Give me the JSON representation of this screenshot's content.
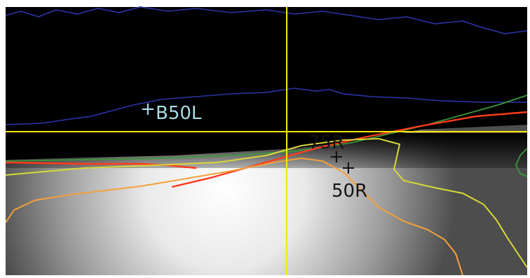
{
  "points": [
    {
      "id": "B50L",
      "label": "B50L",
      "label_color": "#a9dbe6",
      "marker_color": "#a9dbe6"
    },
    {
      "id": "75R",
      "label": "75R",
      "label_color": "#141414",
      "marker_color": "#141414"
    },
    {
      "id": "50R",
      "label": "50R",
      "label_color": "#141414",
      "marker_color": "#141414"
    }
  ],
  "colors": {
    "background_dark": "#000000",
    "crosshair": "#ffe600",
    "contour_blue": "#2a35a8",
    "contour_green": "#3a9a3a",
    "contour_red": "#ff3a1a",
    "contour_yellow": "#d8d83a",
    "contour_orange": "#f2a13a"
  }
}
